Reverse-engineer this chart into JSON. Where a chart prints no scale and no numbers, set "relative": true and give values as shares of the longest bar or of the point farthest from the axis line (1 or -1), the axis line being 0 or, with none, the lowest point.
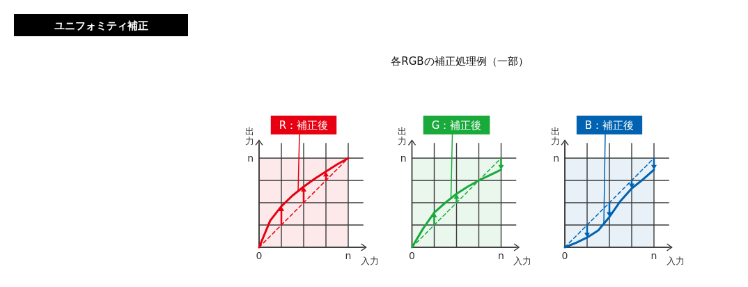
{
  "chart_data": [
    {
      "type": "other",
      "title": "ユニフォミティ補正",
      "subtitle": "各RGBの補正処理例（一部）"
    },
    {
      "type": "line",
      "relative": true,
      "xlabel": "入力",
      "ylabel": "出力",
      "grid": true,
      "annotations": [
        "n"
      ],
      "categories": [
        "0",
        null,
        null,
        null,
        null,
        null,
        null,
        null,
        "n"
      ],
      "series": [
        {
          "values": [
            0,
            0.125,
            0.25,
            0.375,
            0.5,
            0.625,
            0.75,
            0.875,
            1
          ],
          "color": "#e60012",
          "line_style": "dashed"
        },
        {
          "name": "R：補正後",
          "values": [
            0,
            0.3,
            0.46,
            0.58,
            0.68,
            0.77,
            0.85,
            0.93,
            1
          ],
          "color": "#e60012",
          "line_style": "solid"
        }
      ]
    },
    {
      "type": "line",
      "relative": true,
      "xlabel": "入力",
      "ylabel": "出力",
      "grid": true,
      "annotations": [
        "n"
      ],
      "categories": [
        "0",
        null,
        null,
        null,
        null,
        null,
        null,
        null,
        "n"
      ],
      "series": [
        {
          "values": [
            0,
            0.125,
            0.25,
            0.375,
            0.5,
            0.625,
            0.75,
            0.875,
            1
          ],
          "color": "#1aaa3c",
          "line_style": "dashed"
        },
        {
          "name": "G：補正後",
          "values": [
            0,
            0.21,
            0.39,
            0.5,
            0.6,
            0.68,
            0.75,
            0.81,
            0.87
          ],
          "color": "#1aaa3c",
          "line_style": "solid"
        }
      ]
    },
    {
      "type": "line",
      "relative": true,
      "xlabel": "入力",
      "ylabel": "出力",
      "grid": true,
      "annotations": [
        "n"
      ],
      "categories": [
        "0",
        null,
        null,
        null,
        null,
        null,
        null,
        null,
        "n"
      ],
      "series": [
        {
          "values": [
            0,
            0.125,
            0.25,
            0.375,
            0.5,
            0.625,
            0.75,
            0.875,
            1
          ],
          "color": "#0062b0",
          "line_style": "dashed"
        },
        {
          "name": "B：補正後",
          "values": [
            0,
            0.05,
            0.11,
            0.19,
            0.34,
            0.52,
            0.66,
            0.76,
            0.87
          ],
          "color": "#0062b0",
          "line_style": "solid"
        }
      ]
    }
  ]
}
